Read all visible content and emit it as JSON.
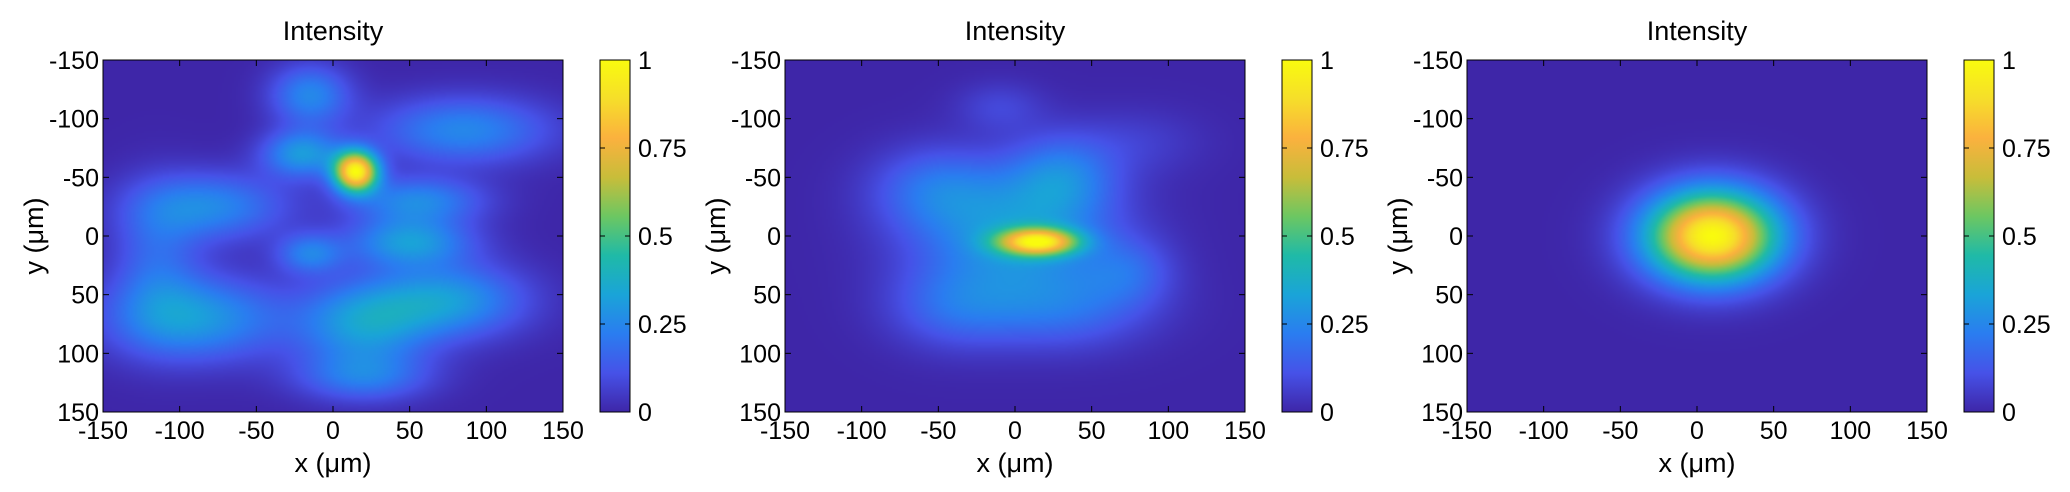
{
  "chart_data": [
    {
      "type": "heatmap",
      "title": "Intensity",
      "xlabel": "x (μm)",
      "ylabel": "y (μm)",
      "x_ticks": [
        -150,
        -100,
        -50,
        0,
        50,
        100,
        150
      ],
      "y_ticks": [
        -150,
        -100,
        -50,
        0,
        50,
        100,
        150
      ],
      "xlim": [
        -150,
        150
      ],
      "ylim": [
        -150,
        150
      ],
      "y_reversed": true,
      "colorbar": {
        "ticks": [
          "0",
          "0.25",
          "0.5",
          "0.75",
          "1"
        ],
        "range": [
          0,
          1
        ]
      },
      "colormap": [
        "#3e26a8",
        "#4652e8",
        "#2a7df0",
        "#1aa4d8",
        "#1fbaa7",
        "#6cc762",
        "#c8bd3a",
        "#fbb13e",
        "#f6de2a",
        "#f9fb0e"
      ],
      "blobs": [
        {
          "x": 15,
          "y": -55,
          "sx": 10,
          "sy": 12,
          "a": 0.95
        },
        {
          "x": -20,
          "y": -70,
          "sx": 18,
          "sy": 14,
          "a": 0.3
        },
        {
          "x": -15,
          "y": -120,
          "sx": 18,
          "sy": 18,
          "a": 0.25
        },
        {
          "x": 85,
          "y": -90,
          "sx": 40,
          "sy": 20,
          "a": 0.25
        },
        {
          "x": -80,
          "y": -25,
          "sx": 35,
          "sy": 20,
          "a": 0.25
        },
        {
          "x": 55,
          "y": -30,
          "sx": 30,
          "sy": 14,
          "a": 0.25
        },
        {
          "x": 50,
          "y": 5,
          "sx": 28,
          "sy": 15,
          "a": 0.3
        },
        {
          "x": -15,
          "y": 15,
          "sx": 15,
          "sy": 12,
          "a": 0.22
        },
        {
          "x": -90,
          "y": 70,
          "sx": 40,
          "sy": 25,
          "a": 0.3
        },
        {
          "x": 20,
          "y": 75,
          "sx": 30,
          "sy": 25,
          "a": 0.3
        },
        {
          "x": 75,
          "y": 55,
          "sx": 35,
          "sy": 22,
          "a": 0.3
        },
        {
          "x": 20,
          "y": 120,
          "sx": 30,
          "sy": 15,
          "a": 0.2
        },
        {
          "x": -115,
          "y": 20,
          "sx": 20,
          "sy": 40,
          "a": 0.15
        }
      ]
    },
    {
      "type": "heatmap",
      "title": "Intensity",
      "xlabel": "x (μm)",
      "ylabel": "y (μm)",
      "x_ticks": [
        -150,
        -100,
        -50,
        0,
        50,
        100,
        150
      ],
      "y_ticks": [
        -150,
        -100,
        -50,
        0,
        50,
        100,
        150
      ],
      "xlim": [
        -150,
        150
      ],
      "ylim": [
        -150,
        150
      ],
      "y_reversed": true,
      "colorbar": {
        "ticks": [
          "0",
          "0.25",
          "0.5",
          "0.75",
          "1"
        ],
        "range": [
          0,
          1
        ]
      },
      "colormap": [
        "#3e26a8",
        "#4652e8",
        "#2a7df0",
        "#1aa4d8",
        "#1fbaa7",
        "#6cc762",
        "#c8bd3a",
        "#fbb13e",
        "#f6de2a",
        "#f9fb0e"
      ],
      "blobs": [
        {
          "x": 15,
          "y": 5,
          "sx": 18,
          "sy": 8,
          "a": 0.75
        },
        {
          "x": 0,
          "y": 0,
          "sx": 45,
          "sy": 35,
          "a": 0.28
        },
        {
          "x": 30,
          "y": -50,
          "sx": 25,
          "sy": 25,
          "a": 0.22
        },
        {
          "x": -50,
          "y": -40,
          "sx": 30,
          "sy": 25,
          "a": 0.18
        },
        {
          "x": 30,
          "y": 60,
          "sx": 40,
          "sy": 25,
          "a": 0.18
        },
        {
          "x": -40,
          "y": 60,
          "sx": 30,
          "sy": 25,
          "a": 0.15
        },
        {
          "x": 75,
          "y": 30,
          "sx": 20,
          "sy": 20,
          "a": 0.12
        },
        {
          "x": -10,
          "y": -110,
          "sx": 20,
          "sy": 15,
          "a": 0.08
        },
        {
          "x": 80,
          "y": -80,
          "sx": 30,
          "sy": 20,
          "a": 0.06
        }
      ]
    },
    {
      "type": "heatmap",
      "title": "Intensity",
      "xlabel": "x (μm)",
      "ylabel": "y (μm)",
      "x_ticks": [
        -150,
        -100,
        -50,
        0,
        50,
        100,
        150
      ],
      "y_ticks": [
        -150,
        -100,
        -50,
        0,
        50,
        100,
        150
      ],
      "xlim": [
        -150,
        150
      ],
      "ylim": [
        -150,
        150
      ],
      "y_reversed": true,
      "colorbar": {
        "ticks": [
          "0",
          "0.25",
          "0.5",
          "0.75",
          "1"
        ],
        "range": [
          0,
          1
        ]
      },
      "colormap": [
        "#3e26a8",
        "#4652e8",
        "#2a7df0",
        "#1aa4d8",
        "#1fbaa7",
        "#6cc762",
        "#c8bd3a",
        "#fbb13e",
        "#f6de2a",
        "#f9fb0e"
      ],
      "blobs": [
        {
          "x": 10,
          "y": 0,
          "sx": 30,
          "sy": 27,
          "a": 1.0
        }
      ]
    }
  ]
}
